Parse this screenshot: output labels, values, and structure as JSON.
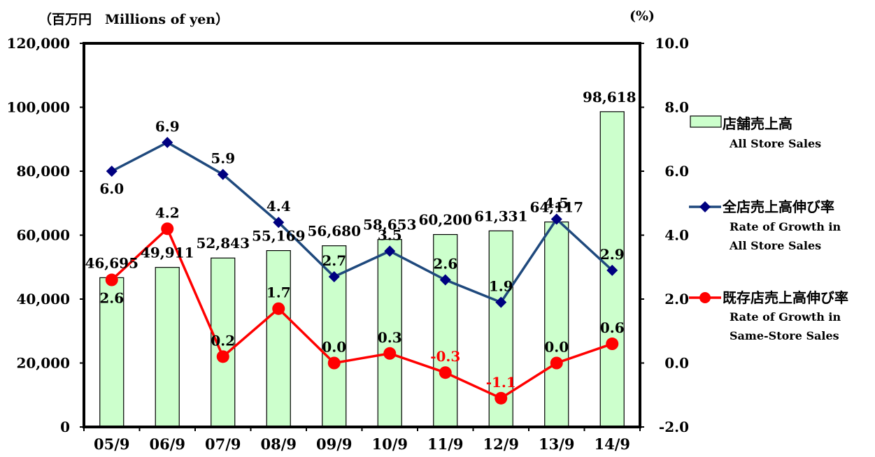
{
  "chart_data": {
    "type": "bar+line",
    "categories": [
      "05/9",
      "06/9",
      "07/9",
      "08/9",
      "09/9",
      "10/9",
      "11/9",
      "12/9",
      "13/9",
      "14/9"
    ],
    "left_axis": {
      "unit_label": "（百万円　Millions of yen）",
      "range": [
        0,
        120000
      ],
      "ticks": [
        "0",
        "20,000",
        "40,000",
        "60,000",
        "80,000",
        "100,000",
        "120,000"
      ]
    },
    "right_axis": {
      "unit_label": "(%)",
      "range": [
        -2,
        10
      ],
      "ticks": [
        "-2.0",
        "0.0",
        "2.0",
        "4.0",
        "6.0",
        "8.0",
        "10.0"
      ]
    },
    "grid": false,
    "legend_position": "right",
    "series": [
      {
        "name_jp": "店舗売上高",
        "name_en": "All Store Sales",
        "kind": "bar",
        "axis": "left",
        "color": "#ccffcc",
        "values": [
          46695,
          49911,
          52843,
          55169,
          56680,
          58653,
          60200,
          61331,
          64117,
          98618
        ],
        "labels": [
          "46,695",
          "49,911",
          "52,843",
          "55,169",
          "56,680",
          "58,653",
          "60,200",
          "61,331",
          "64,117",
          "98,618"
        ]
      },
      {
        "name_jp": "全店売上高伸び率",
        "name_en": [
          "Rate of Growth in",
          "All Store Sales"
        ],
        "kind": "line",
        "marker": "diamond",
        "axis": "right",
        "color": "#1f497d",
        "marker_color": "#000080",
        "values": [
          6.0,
          6.9,
          5.9,
          4.4,
          2.7,
          3.5,
          2.6,
          1.9,
          4.5,
          2.9
        ],
        "labels": [
          "6.0",
          "6.9",
          "5.9",
          "4.4",
          "2.7",
          "3.5",
          "2.6",
          "1.9",
          "4.5",
          "2.9"
        ]
      },
      {
        "name_jp": "既存店売上高伸び率",
        "name_en": [
          "Rate of Growth in",
          "Same-Store Sales"
        ],
        "kind": "line",
        "marker": "circle",
        "axis": "right",
        "color": "#ff0000",
        "values": [
          2.6,
          4.2,
          0.2,
          1.7,
          0.0,
          0.3,
          -0.3,
          -1.1,
          0.0,
          0.6
        ],
        "labels": [
          "2.6",
          "4.2",
          "0.2",
          "1.7",
          "0.0",
          "0.3",
          "-0.3",
          "-1.1",
          "0.0",
          "0.6"
        ]
      }
    ]
  }
}
